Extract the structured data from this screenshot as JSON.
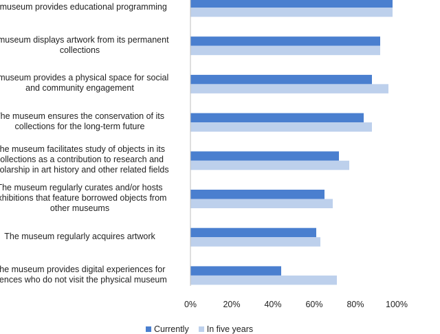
{
  "chart_data": {
    "type": "bar",
    "orientation": "horizontal",
    "title": "",
    "xlabel": "",
    "ylabel": "",
    "xlim": [
      0,
      100
    ],
    "grid": false,
    "legend_position": "bottom",
    "categories": [
      [
        "e museum provides educational programming"
      ],
      [
        "e museum displays artwork from its permanent",
        "collections"
      ],
      [
        "e museum provides a physical space for social",
        "and community engagement"
      ],
      [
        "The museum ensures the conservation of  its",
        "collections for the long-term future"
      ],
      [
        "The museum facilitates study of objects in its",
        "collections as a contribution to research and",
        "cholarship in art history and other related fields"
      ],
      [
        "The museum regularly curates and/or hosts",
        "exhibitions that feature borrowed objects from",
        "other museums"
      ],
      [
        "The museum regularly acquires artwork"
      ],
      [
        "The museum provides digital experiences for",
        "diences who do not visit the physical museum"
      ]
    ],
    "series": [
      {
        "name": "Currently",
        "color": "#4a7fcf",
        "values": [
          98,
          92,
          88,
          84,
          72,
          65,
          61,
          44
        ]
      },
      {
        "name": "In five years",
        "color": "#bdd0ec",
        "values": [
          98,
          92,
          96,
          88,
          77,
          69,
          63,
          71
        ]
      }
    ],
    "ticks": [
      "0%",
      "20%",
      "40%",
      "60%",
      "80%",
      "100%"
    ],
    "tick_values": [
      0,
      20,
      40,
      60,
      80,
      100
    ]
  }
}
